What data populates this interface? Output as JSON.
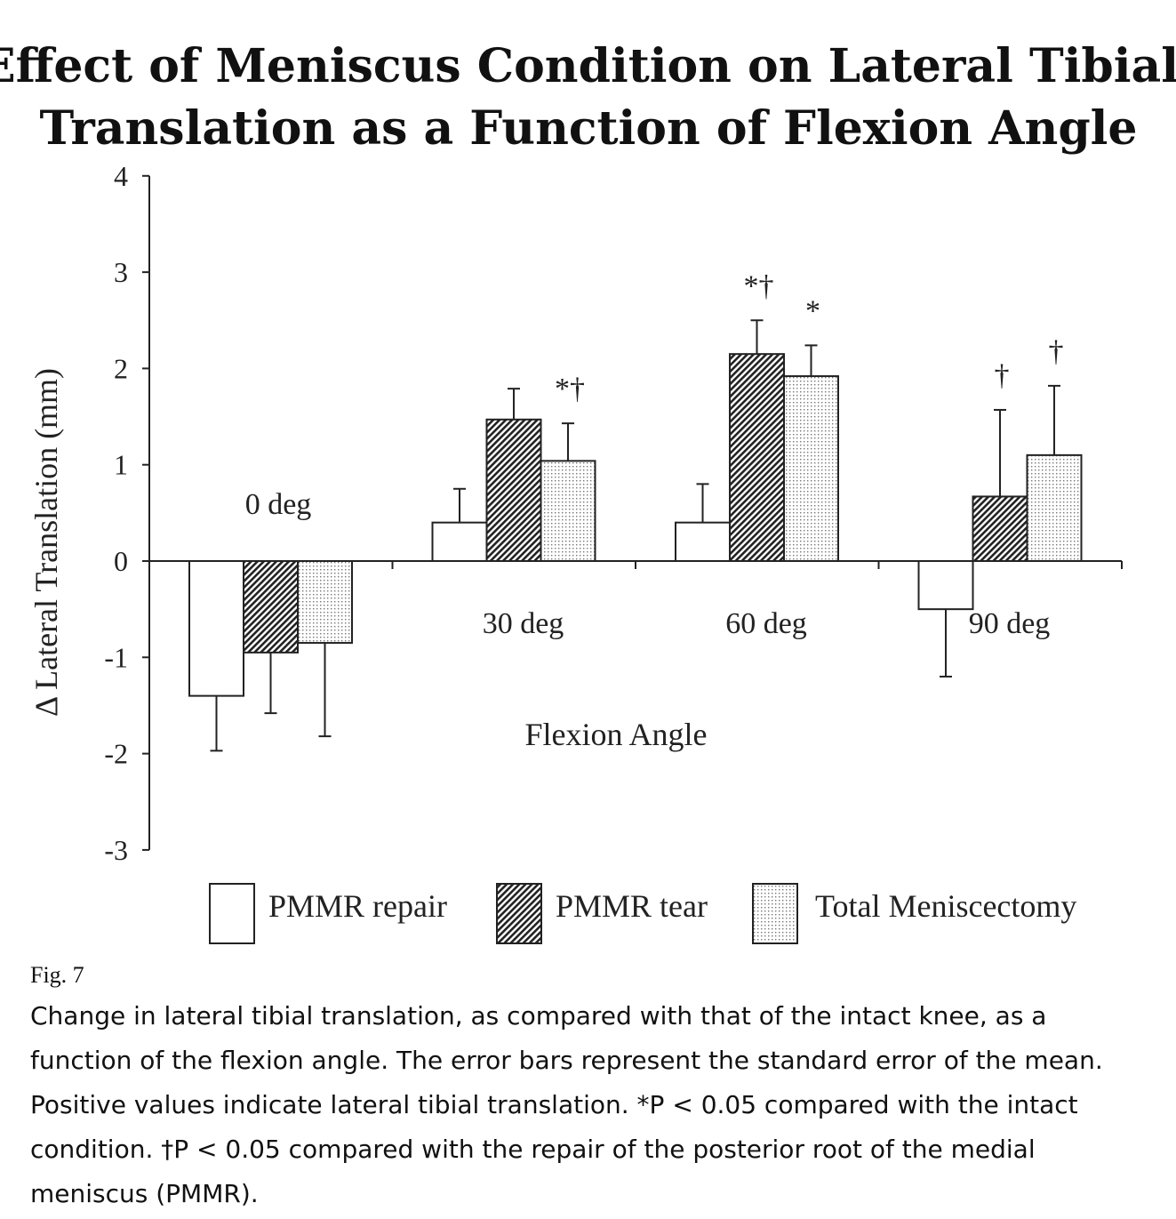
{
  "chart_data": {
    "type": "bar",
    "title_lines": [
      "Effect of Meniscus Condition on Lateral Tibial",
      "Translation as a Function of Flexion Angle"
    ],
    "xlabel": "Flexion Angle",
    "ylabel": "Δ Lateral Translation (mm)",
    "ylim": [
      -3,
      4
    ],
    "yticks": [
      "-3",
      "-2",
      "-1",
      "0",
      "1",
      "2",
      "3",
      "4"
    ],
    "categories": [
      "0 deg",
      "30 deg",
      "60 deg",
      "90 deg"
    ],
    "series": [
      {
        "name": "PMMR repair",
        "values": [
          -1.4,
          0.4,
          0.4,
          -0.5
        ],
        "errors": [
          0.57,
          0.35,
          0.4,
          0.7
        ]
      },
      {
        "name": "PMMR tear",
        "values": [
          -0.95,
          1.47,
          2.15,
          0.67
        ],
        "errors": [
          0.63,
          0.32,
          0.35,
          0.9
        ]
      },
      {
        "name": "Total Meniscectomy",
        "values": [
          -0.85,
          1.04,
          1.92,
          1.1
        ],
        "errors": [
          0.97,
          0.39,
          0.32,
          0.72
        ]
      }
    ],
    "annotations": [
      {
        "category": 1,
        "series": 2,
        "text": "*†"
      },
      {
        "category": 2,
        "series": 1,
        "text": "*†"
      },
      {
        "category": 2,
        "series": 2,
        "text": "*"
      },
      {
        "category": 3,
        "series": 1,
        "text": "†"
      },
      {
        "category": 3,
        "series": 2,
        "text": "†"
      }
    ]
  },
  "figure_label": "Fig. 7",
  "caption_lines": [
    "Change in lateral tibial translation, as compared with that of the intact knee, as a",
    "function of the flexion angle. The error bars represent the standard error of the mean.",
    "Positive values indicate lateral tibial translation. *P < 0.05 compared with the intact",
    "condition. †P < 0.05 compared with the repair of the posterior root of the medial",
    "meniscus (PMMR)."
  ]
}
